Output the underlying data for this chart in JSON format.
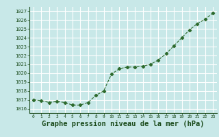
{
  "x": [
    0,
    1,
    2,
    3,
    4,
    5,
    6,
    7,
    8,
    9,
    10,
    11,
    12,
    13,
    14,
    15,
    16,
    17,
    18,
    19,
    20,
    21,
    22,
    23
  ],
  "y": [
    1017.0,
    1016.9,
    1016.7,
    1016.8,
    1016.7,
    1016.4,
    1016.4,
    1016.7,
    1017.5,
    1018.0,
    1019.9,
    1020.5,
    1020.7,
    1020.7,
    1020.8,
    1021.0,
    1021.5,
    1022.2,
    1023.1,
    1024.0,
    1024.9,
    1025.6,
    1026.1,
    1026.8
  ],
  "line_color": "#2d6a2d",
  "marker": "D",
  "marker_size": 2.2,
  "bg_color": "#c8e8e8",
  "grid_color": "#ffffff",
  "xlabel": "Graphe pression niveau de la mer (hPa)",
  "xlabel_fontsize": 7.5,
  "xlabel_color": "#1a4a1a",
  "tick_label_color": "#1a4a1a",
  "ylim_min": 1015.5,
  "ylim_max": 1027.5,
  "yticks": [
    1016,
    1017,
    1018,
    1019,
    1020,
    1021,
    1022,
    1023,
    1024,
    1025,
    1026,
    1027
  ],
  "xticks": [
    0,
    1,
    2,
    3,
    4,
    5,
    6,
    7,
    8,
    9,
    10,
    11,
    12,
    13,
    14,
    15,
    16,
    17,
    18,
    19,
    20,
    21,
    22,
    23
  ],
  "xlim_min": -0.5,
  "xlim_max": 23.5
}
